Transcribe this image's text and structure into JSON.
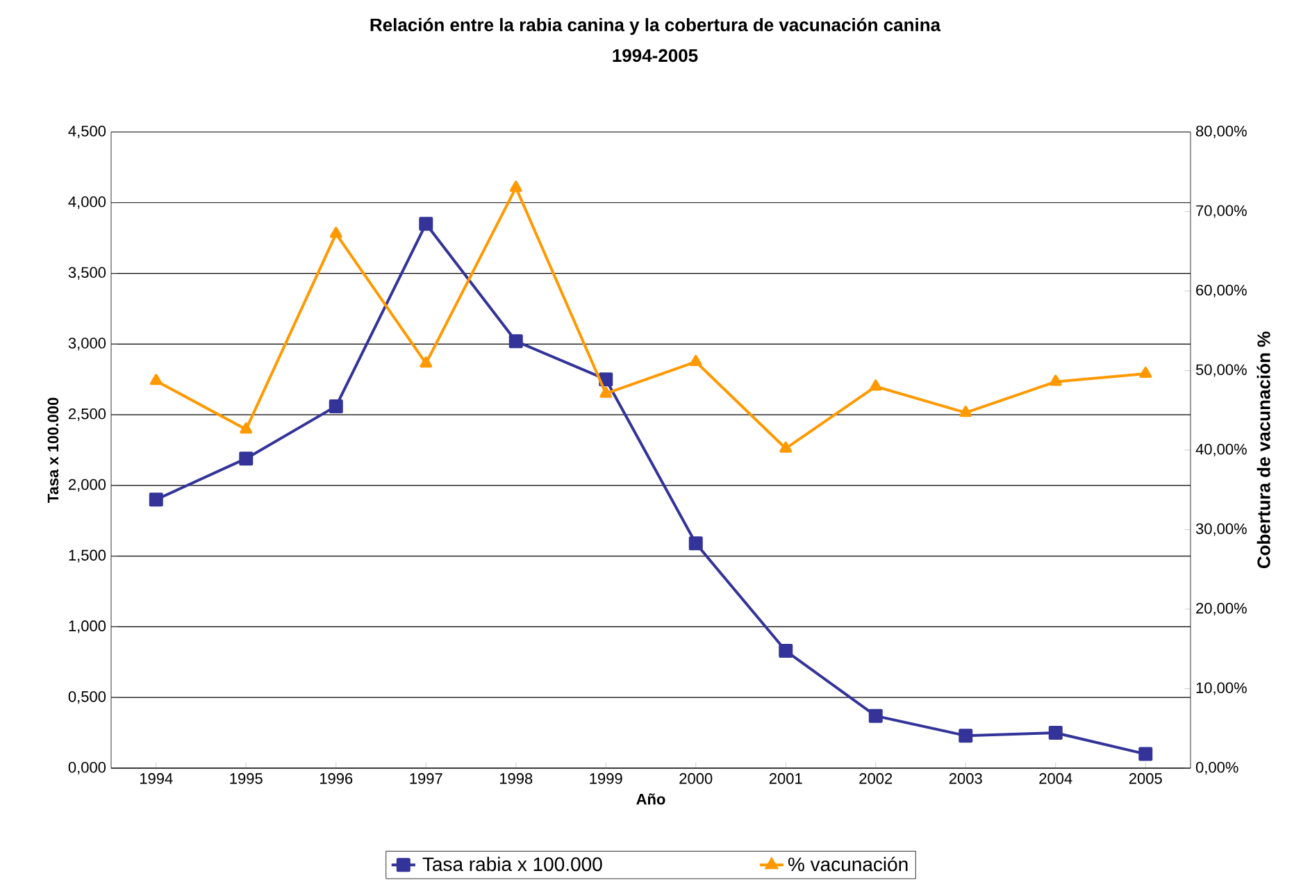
{
  "chart_data": {
    "type": "line",
    "title": "Relación entre la rabia canina y la cobertura de vacunación canina",
    "subtitle": "1994-2005",
    "xlabel": "Año",
    "ylabel": "Tasa x 100.000",
    "y2label": "Cobertura de vacunación %",
    "categories": [
      "1994",
      "1995",
      "1996",
      "1997",
      "1998",
      "1999",
      "2000",
      "2001",
      "2002",
      "2003",
      "2004",
      "2005"
    ],
    "series": [
      {
        "name": "Tasa rabia x 100.000",
        "color": "#333399",
        "marker": "square",
        "values": [
          1.9,
          2.19,
          2.56,
          3.85,
          3.02,
          2.75,
          1.59,
          0.83,
          0.37,
          0.23,
          0.25,
          0.1
        ]
      },
      {
        "name": "% vacunación",
        "color": "#ff9900",
        "marker": "triangle",
        "axis": "y2",
        "values": [
          48.7,
          42.6,
          67.2,
          50.9,
          73.0,
          47.1,
          51.1,
          40.2,
          48.0,
          44.7,
          48.6,
          49.6
        ]
      }
    ],
    "ylim": [
      0,
      4.5
    ],
    "yticks": [
      {
        "value": 0,
        "label": "0,000"
      },
      {
        "value": 0.5,
        "label": "0,500"
      },
      {
        "value": 1,
        "label": "1,000"
      },
      {
        "value": 1.5,
        "label": "1,500"
      },
      {
        "value": 2,
        "label": "2,000"
      },
      {
        "value": 2.5,
        "label": "2,500"
      },
      {
        "value": 3,
        "label": "3,000"
      },
      {
        "value": 3.5,
        "label": "3,500"
      },
      {
        "value": 4,
        "label": "4,000"
      },
      {
        "value": 4.5,
        "label": "4,500"
      }
    ],
    "y2lim": [
      0,
      80
    ],
    "y2ticks": [
      {
        "value": 0,
        "label": "0,00%"
      },
      {
        "value": 10,
        "label": "10,00%"
      },
      {
        "value": 20,
        "label": "20,00%"
      },
      {
        "value": 30,
        "label": "30,00%"
      },
      {
        "value": 40,
        "label": "40,00%"
      },
      {
        "value": 50,
        "label": "50,00%"
      },
      {
        "value": 60,
        "label": "60,00%"
      },
      {
        "value": 70,
        "label": "70,00%"
      },
      {
        "value": 80,
        "label": "80,00%"
      }
    ],
    "grid": "y",
    "legend": "bottom",
    "line_style": "solid"
  }
}
